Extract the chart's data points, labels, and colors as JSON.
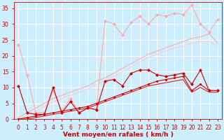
{
  "xlabel": "Vent moyen/en rafales ( km/h )",
  "bg_color": "#cceeff",
  "grid_color": "#ffffff",
  "x": [
    0,
    1,
    2,
    3,
    4,
    5,
    6,
    7,
    8,
    9,
    10,
    11,
    12,
    13,
    14,
    15,
    16,
    17,
    18,
    19,
    20,
    21,
    22,
    23
  ],
  "series": [
    {
      "y": [
        23.5,
        14.0,
        2.0,
        2.0,
        9.0,
        2.5,
        6.5,
        2.0,
        3.5,
        3.0,
        31.0,
        30.0,
        26.5,
        30.5,
        32.5,
        30.0,
        33.0,
        32.5,
        33.5,
        33.0,
        36.0,
        30.0,
        27.5,
        31.5
      ],
      "color": "#ffaaaa",
      "lw": 0.8,
      "marker": "D",
      "ms": 2.0,
      "zorder": 2
    },
    {
      "y": [
        10.5,
        2.0,
        1.5,
        1.5,
        10.0,
        2.0,
        5.5,
        2.0,
        3.5,
        3.0,
        12.0,
        12.5,
        10.5,
        14.5,
        15.5,
        15.5,
        14.0,
        13.5,
        14.0,
        14.5,
        11.0,
        15.5,
        9.0,
        9.0
      ],
      "color": "#cc0000",
      "lw": 0.8,
      "marker": "D",
      "ms": 2.0,
      "zorder": 3
    },
    {
      "y": [
        0.5,
        2.0,
        3.5,
        5.0,
        6.5,
        7.5,
        8.5,
        9.5,
        10.5,
        12.0,
        13.0,
        14.5,
        16.0,
        17.5,
        19.0,
        20.5,
        21.5,
        22.5,
        23.5,
        24.5,
        25.5,
        26.0,
        27.0,
        24.0
      ],
      "color": "#ffaaaa",
      "lw": 0.8,
      "marker": "None",
      "ms": 0,
      "zorder": 1
    },
    {
      "y": [
        0.0,
        1.0,
        2.5,
        4.0,
        5.5,
        6.5,
        7.5,
        8.5,
        9.5,
        11.0,
        12.0,
        13.5,
        15.0,
        16.5,
        18.0,
        19.5,
        20.5,
        21.5,
        22.5,
        23.0,
        24.0,
        24.5,
        24.5,
        23.0
      ],
      "color": "#ffcccc",
      "lw": 0.8,
      "marker": "None",
      "ms": 0,
      "zorder": 1
    },
    {
      "y": [
        0.0,
        0.5,
        1.0,
        1.5,
        2.0,
        2.5,
        3.0,
        3.5,
        4.0,
        5.0,
        6.0,
        7.0,
        8.0,
        9.0,
        10.0,
        11.0,
        12.0,
        12.5,
        13.0,
        13.5,
        9.0,
        11.0,
        9.0,
        9.0
      ],
      "color": "#cc0000",
      "lw": 0.8,
      "marker": "D",
      "ms": 1.5,
      "zorder": 3
    },
    {
      "y": [
        0.0,
        0.0,
        0.5,
        1.0,
        1.5,
        2.0,
        2.5,
        3.0,
        3.5,
        4.5,
        5.5,
        6.5,
        7.5,
        8.5,
        9.5,
        10.5,
        11.0,
        11.5,
        12.0,
        12.5,
        8.5,
        10.0,
        8.5,
        8.5
      ],
      "color": "#dd2222",
      "lw": 0.8,
      "marker": "None",
      "ms": 0,
      "zorder": 2
    }
  ],
  "ylim": [
    0,
    37
  ],
  "yticks": [
    0,
    5,
    10,
    15,
    20,
    25,
    30,
    35
  ],
  "xlim": [
    -0.5,
    23.5
  ],
  "tick_color": "#cc0000",
  "label_color": "#cc0000",
  "tick_fontsize": 5.5,
  "xlabel_fontsize": 6.5
}
